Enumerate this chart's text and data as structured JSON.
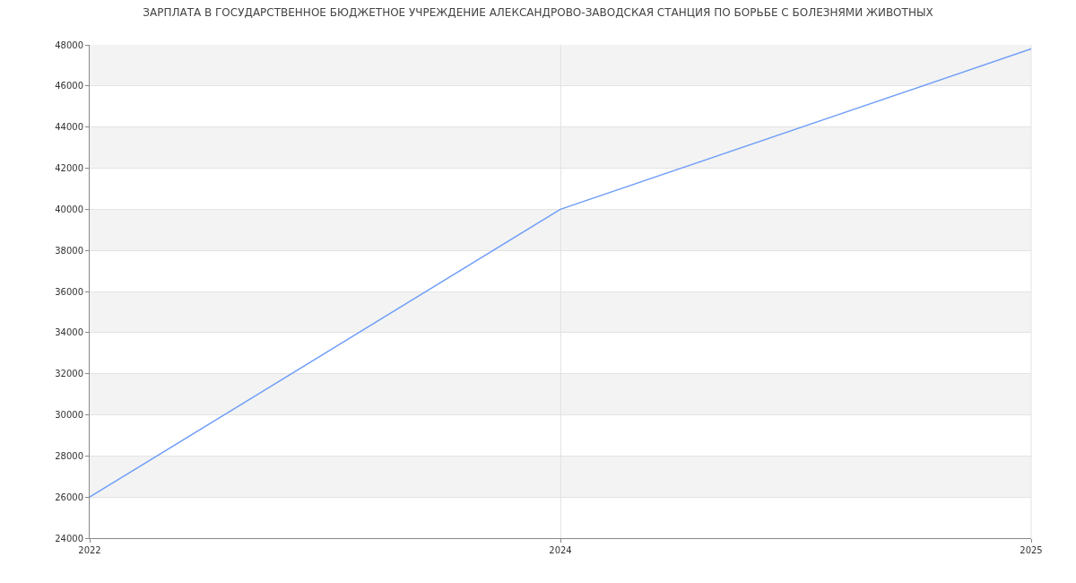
{
  "chart_data": {
    "type": "line",
    "title": "ЗАРПЛАТА В ГОСУДАРСТВЕННОЕ БЮДЖЕТНОЕ УЧРЕЖДЕНИЕ АЛЕКСАНДРОВО-ЗАВОДСКАЯ СТАНЦИЯ ПО БОРЬБЕ С БОЛЕЗНЯМИ ЖИВОТНЫХ",
    "categories": [
      "2022",
      "2024",
      "2025"
    ],
    "series": [
      {
        "color": "#6f9ef8",
        "values": [
          26000,
          40000,
          47800
        ]
      }
    ],
    "ylim": [
      24000,
      48000
    ],
    "yticks": [
      24000,
      26000,
      28000,
      30000,
      32000,
      34000,
      36000,
      38000,
      40000,
      42000,
      44000,
      46000,
      48000
    ],
    "grid": true,
    "marker": "none",
    "line_style": "solid"
  }
}
